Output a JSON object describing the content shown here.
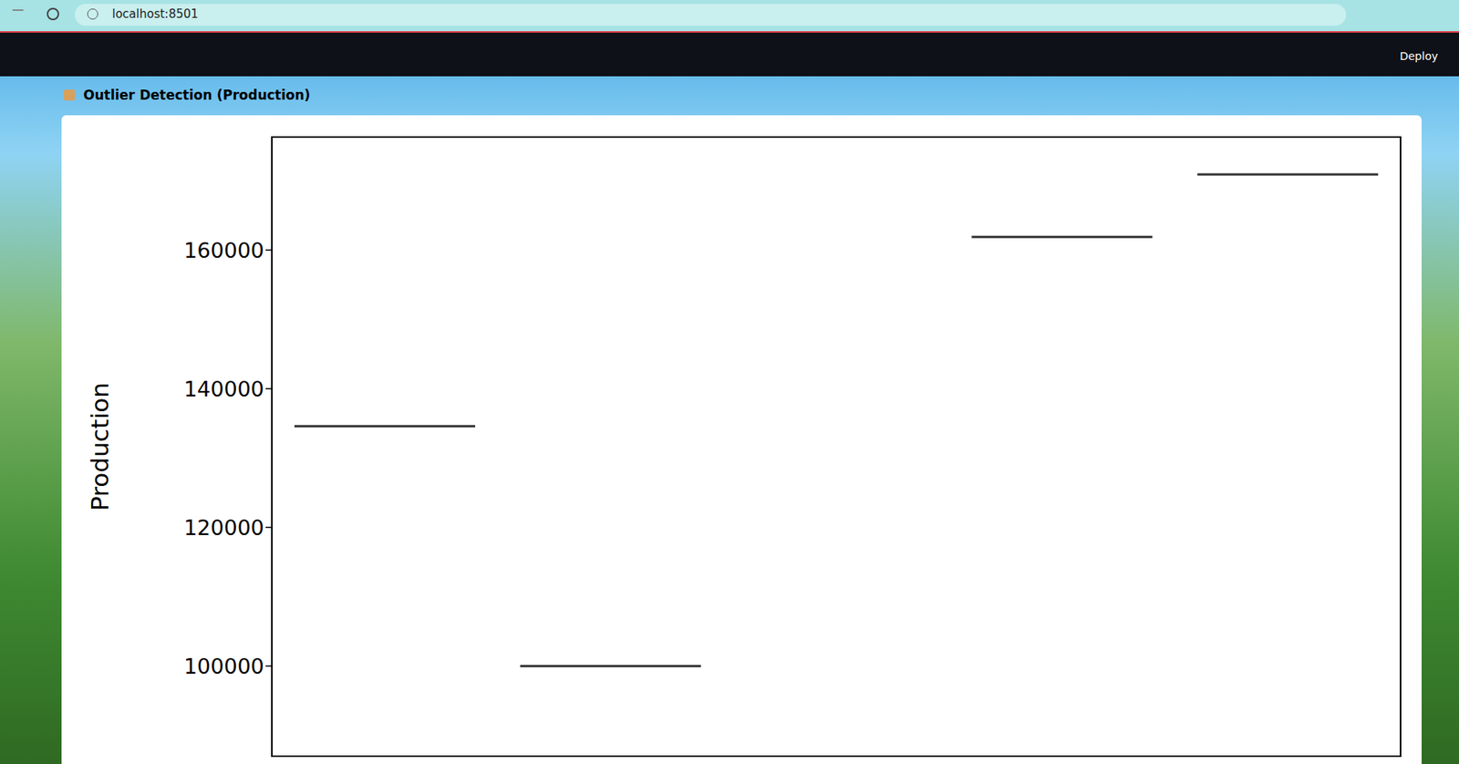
{
  "browser": {
    "url": "localhost:8501"
  },
  "app": {
    "header_button": "Deploy",
    "title": "Outlier Detection (Production)"
  },
  "chart_data": {
    "type": "box",
    "categories": [
      null,
      null,
      null,
      null,
      null
    ],
    "values": [
      134600,
      100000,
      null,
      161900,
      170900
    ],
    "y_label": "Production",
    "ylim": [
      87000,
      176300
    ],
    "yticks": [
      100000,
      120000,
      140000,
      160000
    ],
    "color": "#333333",
    "grid": false,
    "tick_labels": "y"
  }
}
